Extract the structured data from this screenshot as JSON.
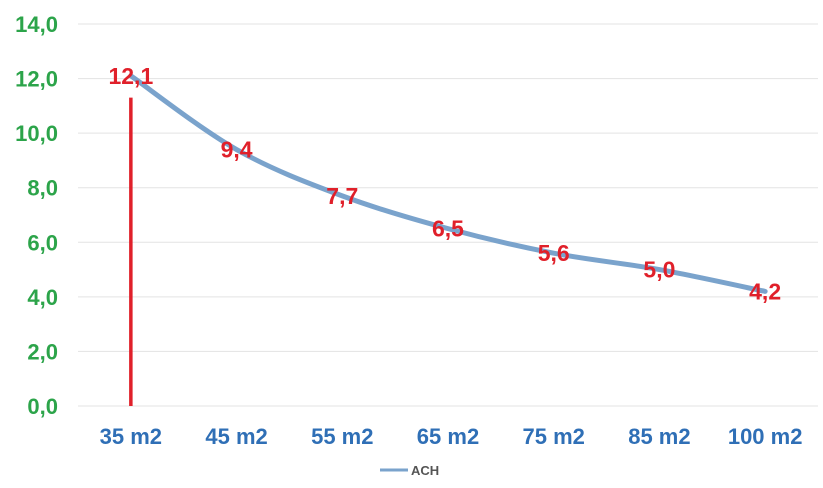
{
  "chart_data": {
    "type": "line",
    "categories": [
      "35 m2",
      "45 m2",
      "55 m2",
      "65 m2",
      "75 m2",
      "85 m2",
      "100 m2"
    ],
    "series": [
      {
        "name": "ACH",
        "values": [
          12.1,
          9.4,
          7.7,
          6.5,
          5.6,
          5.0,
          4.2
        ],
        "color": "#7aa3cc"
      }
    ],
    "data_labels": [
      "12,1",
      "9,4",
      "7,7",
      "6,5",
      "5,6",
      "5,0",
      "4,2"
    ],
    "y_ticks": [
      "0,0",
      "2,0",
      "4,0",
      "6,0",
      "8,0",
      "10,0",
      "12,0",
      "14,0"
    ],
    "ylim": [
      0,
      14
    ],
    "ystep": 2,
    "grid": true,
    "legend": "bottom",
    "marker_line": {
      "category": "35 m2",
      "from": 0,
      "to": 11.3,
      "color": "#e0202a"
    },
    "colors": {
      "ytick": "#2ca44a",
      "xtick": "#2f6fb6",
      "data_label": "#e0202a",
      "grid": "#e3e3e3"
    }
  }
}
